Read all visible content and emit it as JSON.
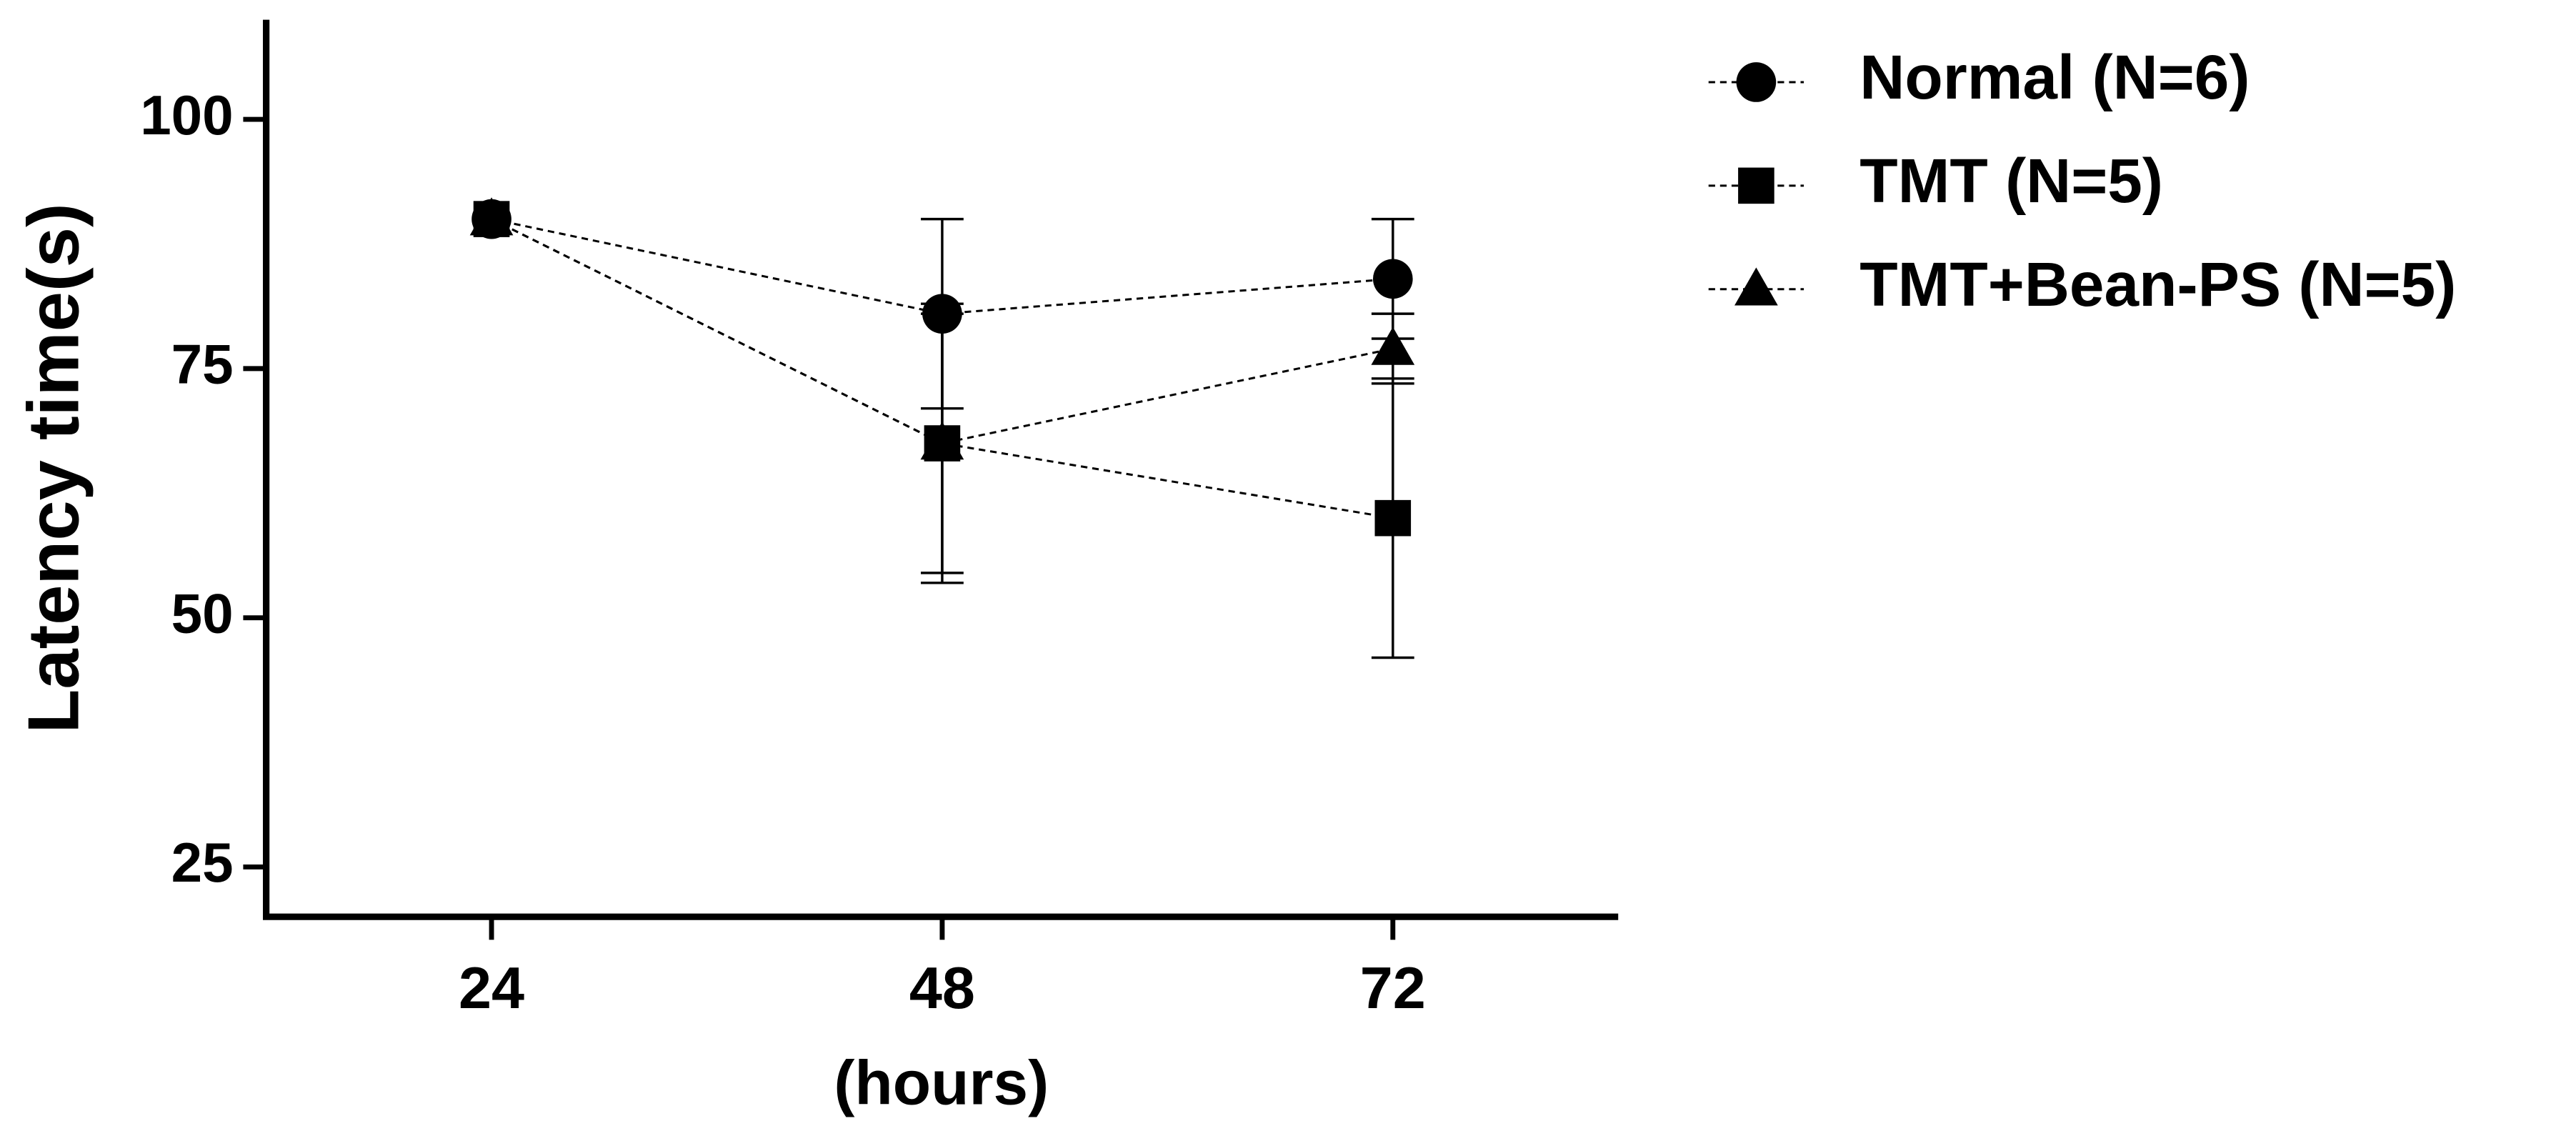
{
  "chart_data": {
    "type": "line",
    "x_label": "(hours)",
    "y_label": "Latency time(s)",
    "x": [
      24,
      48,
      72
    ],
    "xlim": [
      12,
      84
    ],
    "xticks": [
      24,
      48,
      72
    ],
    "ylim": [
      20,
      110
    ],
    "yticks": [
      25,
      50,
      75,
      100
    ],
    "line_style": "dashed",
    "legend": "upper right",
    "series": [
      {
        "name": "Normal (N=6)",
        "color": "#000000",
        "marker": "circle",
        "values": [
          90,
          80.5,
          84
        ],
        "errors": [
          0,
          9.5,
          6
        ]
      },
      {
        "name": "TMT (N=5)",
        "color": "#000000",
        "marker": "square",
        "values": [
          90,
          67.5,
          60
        ],
        "errors": [
          0,
          13,
          14
        ]
      },
      {
        "name": "TMT+Bean-PS (N=5)",
        "color": "#000000",
        "marker": "triangle",
        "values": [
          90,
          67.5,
          77
        ],
        "errors": [
          0,
          14,
          3.5
        ]
      }
    ]
  }
}
